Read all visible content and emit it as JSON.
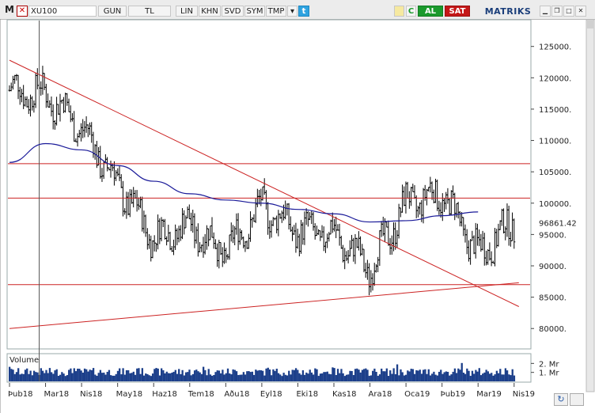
{
  "toolbar": {
    "app_icon": "M",
    "symbol": "XU100",
    "buttons": [
      "GUN",
      "TL",
      "LIN",
      "KHN",
      "SVD",
      "SYM",
      "TMP"
    ],
    "dropdown": "▾",
    "twitter_icon": "twitter-icon",
    "icon_c": "C",
    "buy": "AL",
    "sell": "SAT",
    "brand": "MATRIKS"
  },
  "chart_data": {
    "type": "line",
    "style": "ohlc-bars",
    "x_labels": [
      "Þub18",
      "Mar18",
      "Nis18",
      "May18",
      "Haz18",
      "Tem18",
      "Aðu18",
      "Eyl18",
      "Eki18",
      "Kas18",
      "Ara18",
      "Oca19",
      "Þub19",
      "Mar19",
      "Nis19"
    ],
    "y_ticks": [
      80000,
      85000,
      90000,
      95000,
      100000,
      105000,
      110000,
      115000,
      120000,
      125000
    ],
    "y_tick_labels": [
      "80000.",
      "85000.",
      "90000.",
      "95000.",
      "100000.",
      "105000.",
      "110000.",
      "115000.",
      "120000.",
      "125000."
    ],
    "ylim": [
      77000,
      129000
    ],
    "last_value": 96861.42,
    "last_value_label": "96861.42",
    "price_series": {
      "name": "",
      "x": [
        "Þub18",
        "Mar18",
        "Nis18",
        "May18",
        "Haz18",
        "Tem18",
        "Aðu18",
        "Eyl18",
        "Eki18",
        "Kas18",
        "Ara18",
        "Oca19",
        "Þub19",
        "Mar19",
        "Nis19"
      ],
      "values": [
        118000,
        117500,
        112000,
        103000,
        94500,
        96500,
        92000,
        99500,
        95500,
        95000,
        89500,
        100000,
        101500,
        92000,
        96861
      ]
    },
    "moving_average": {
      "name": "",
      "color": "#1a1a99",
      "values": [
        106500,
        109500,
        108500,
        106000,
        103500,
        101500,
        100500,
        100000,
        99000,
        98300,
        97000,
        97200,
        98000,
        98600
      ]
    },
    "horizontal_lines": [
      106300,
      100800,
      87000
    ],
    "trend_lines": [
      {
        "from": [
          0,
          122800
        ],
        "to": [
          14,
          83500
        ]
      },
      {
        "from": [
          0,
          80000
        ],
        "to": [
          14,
          87300
        ]
      }
    ],
    "cursor_x": "Mar18",
    "grid": false,
    "colors": {
      "price": "#000000",
      "trend": "#cc2222",
      "ma": "#1a1a99",
      "volume": "#1c3f8a"
    },
    "volume": {
      "title": "Volume",
      "y_tick_labels": [
        "2. Mr",
        "1. Mr"
      ],
      "ylim": [
        0,
        3
      ]
    }
  }
}
